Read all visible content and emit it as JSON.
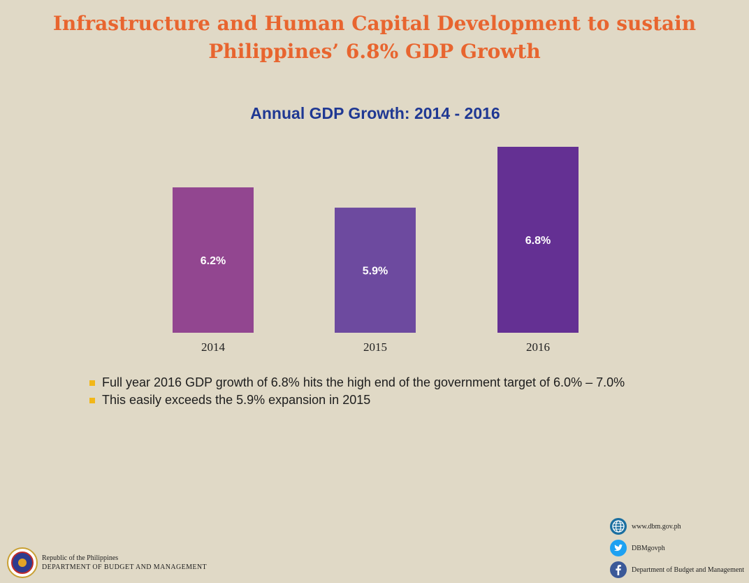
{
  "headline": {
    "line1": "Infrastructure and Human Capital Development to sustain",
    "line2": "Philippines’ 6.8% GDP Growth"
  },
  "chart_data": {
    "type": "bar",
    "title": "Annual GDP Growth: 2014 - 2016",
    "categories": [
      "2014",
      "2015",
      "2016"
    ],
    "values": [
      6.2,
      5.9,
      6.8
    ],
    "data_labels": [
      "6.2%",
      "5.9%",
      "6.8%"
    ],
    "unit": "%",
    "colors": [
      "#924690",
      "#6d4a9f",
      "#643093"
    ],
    "grid": false,
    "legend": "none",
    "axes_visible": false
  },
  "bullets": [
    "Full year 2016 GDP growth of 6.8% hits the high end of the government target of 6.0% – 7.0%",
    "This easily exceeds the 5.9% expansion in 2015"
  ],
  "footer": {
    "org_line1": "Republic of the Philippines",
    "org_line2": "DEPARTMENT OF BUDGET AND MANAGEMENT",
    "seal_icon": "dbm-seal-icon",
    "social": [
      {
        "icon": "globe-icon",
        "label": "www.dbm.gov.ph",
        "color": "#1b6fa0"
      },
      {
        "icon": "twitter-icon",
        "label": "DBMgovph",
        "color": "#1da1f2"
      },
      {
        "icon": "facebook-icon",
        "label": "Department of Budget and Management",
        "color": "#3b5998"
      }
    ]
  },
  "colors": {
    "background": "#e0d9c6",
    "headline": "#e8652f",
    "chart_title": "#1f3893",
    "bullet_marker": "#f2b718"
  }
}
